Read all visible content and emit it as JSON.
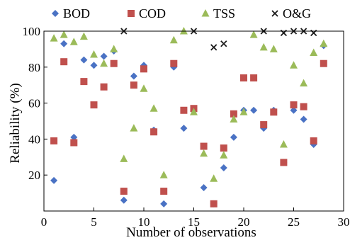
{
  "chart_data": {
    "type": "scatter",
    "title": "",
    "xlabel": "Number of observations",
    "ylabel": "Reliability (%)",
    "xlim": [
      0,
      30
    ],
    "ylim": [
      0,
      100
    ],
    "xticks": [
      0,
      5,
      10,
      15,
      20,
      25,
      30
    ],
    "yticks": [
      20,
      40,
      60,
      80,
      100
    ],
    "grid": false,
    "legend_position": "top",
    "series": [
      {
        "name": "BOD",
        "color": "#4a72c4",
        "marker": "diamond",
        "points": [
          [
            1,
            17
          ],
          [
            2,
            93
          ],
          [
            3,
            41
          ],
          [
            4,
            84
          ],
          [
            5,
            81
          ],
          [
            6,
            86
          ],
          [
            7,
            89
          ],
          [
            8,
            6
          ],
          [
            9,
            75
          ],
          [
            10,
            81
          ],
          [
            11,
            45
          ],
          [
            12,
            4
          ],
          [
            13,
            80
          ],
          [
            14,
            46
          ],
          [
            15,
            56
          ],
          [
            16,
            13
          ],
          [
            17,
            4
          ],
          [
            18,
            24
          ],
          [
            19,
            41
          ],
          [
            20,
            56
          ],
          [
            21,
            56
          ],
          [
            22,
            46
          ],
          [
            23,
            56
          ],
          [
            24,
            27
          ],
          [
            25,
            56
          ],
          [
            26,
            51
          ],
          [
            27,
            37
          ],
          [
            28,
            92
          ]
        ]
      },
      {
        "name": "COD",
        "color": "#c0504d",
        "marker": "square",
        "points": [
          [
            1,
            39
          ],
          [
            2,
            83
          ],
          [
            3,
            38
          ],
          [
            4,
            72
          ],
          [
            5,
            59
          ],
          [
            6,
            69
          ],
          [
            7,
            82
          ],
          [
            8,
            11
          ],
          [
            9,
            70
          ],
          [
            10,
            79
          ],
          [
            11,
            44
          ],
          [
            12,
            11
          ],
          [
            13,
            82
          ],
          [
            14,
            56
          ],
          [
            15,
            57
          ],
          [
            16,
            36
          ],
          [
            17,
            4
          ],
          [
            18,
            35
          ],
          [
            19,
            54
          ],
          [
            20,
            74
          ],
          [
            21,
            74
          ],
          [
            22,
            48
          ],
          [
            23,
            55
          ],
          [
            24,
            27
          ],
          [
            25,
            59
          ],
          [
            26,
            58
          ],
          [
            27,
            39
          ],
          [
            28,
            82
          ]
        ]
      },
      {
        "name": "TSS",
        "color": "#9bbb59",
        "marker": "triangle",
        "points": [
          [
            1,
            96
          ],
          [
            2,
            98
          ],
          [
            3,
            94
          ],
          [
            4,
            97
          ],
          [
            5,
            87
          ],
          [
            6,
            82
          ],
          [
            7,
            90
          ],
          [
            8,
            29
          ],
          [
            9,
            46
          ],
          [
            10,
            68
          ],
          [
            11,
            57
          ],
          [
            12,
            20
          ],
          [
            13,
            95
          ],
          [
            14,
            100
          ],
          [
            15,
            55
          ],
          [
            16,
            32
          ],
          [
            17,
            18
          ],
          [
            18,
            31
          ],
          [
            19,
            51
          ],
          [
            20,
            55
          ],
          [
            21,
            98
          ],
          [
            22,
            91
          ],
          [
            23,
            90
          ],
          [
            24,
            37
          ],
          [
            25,
            81
          ],
          [
            26,
            71
          ],
          [
            27,
            88
          ],
          [
            28,
            93
          ]
        ]
      },
      {
        "name": "O&G",
        "color": "#1a1a1a",
        "marker": "x",
        "points": [
          [
            8,
            100
          ],
          [
            15,
            100
          ],
          [
            17,
            91
          ],
          [
            18,
            93
          ],
          [
            22,
            100
          ],
          [
            24,
            99
          ],
          [
            25,
            100
          ],
          [
            26,
            100
          ],
          [
            27,
            99
          ]
        ]
      }
    ]
  }
}
